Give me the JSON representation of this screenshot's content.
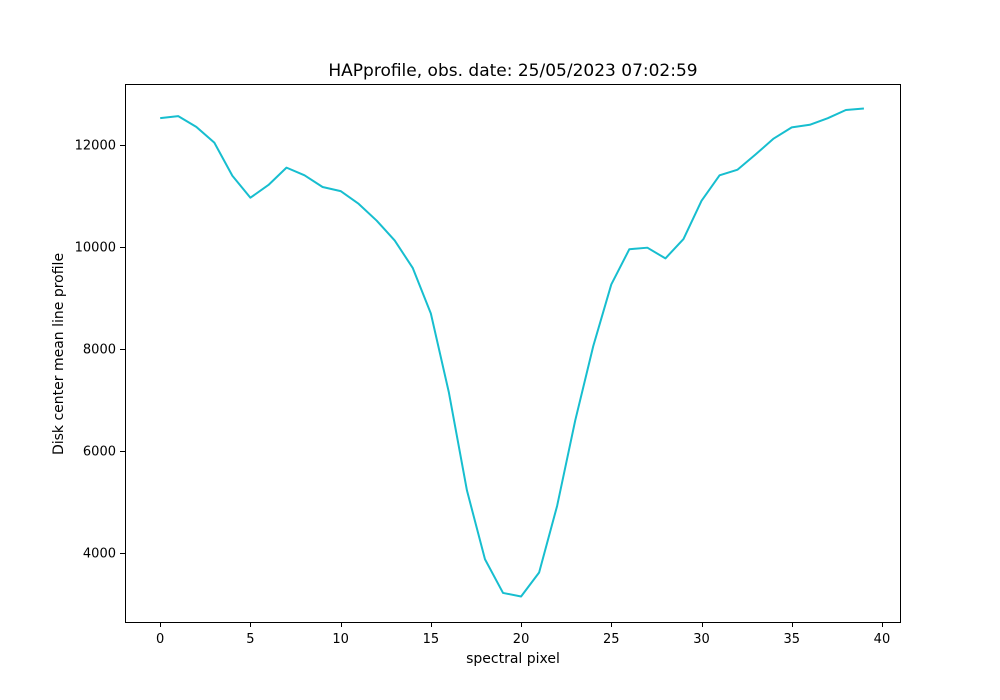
{
  "chart_data": {
    "type": "line",
    "title": "HAPprofile, obs. date: 25/05/2023 07:02:59",
    "xlabel": "spectral pixel",
    "ylabel": "Disk center mean line profile",
    "xlim": [
      -1.95,
      41.0
    ],
    "ylim": [
      2650,
      13200
    ],
    "xticks": [
      0,
      5,
      10,
      15,
      20,
      25,
      30,
      35,
      40
    ],
    "xtick_labels": [
      "0",
      "5",
      "10",
      "15",
      "20",
      "25",
      "30",
      "35",
      "40"
    ],
    "yticks": [
      4000,
      6000,
      8000,
      10000,
      12000
    ],
    "ytick_labels": [
      "4000",
      "6000",
      "8000",
      "10000",
      "12000"
    ],
    "grid": false,
    "legend": "none",
    "series": [
      {
        "color": "#17becf",
        "x": [
          0,
          1,
          2,
          3,
          4,
          5,
          6,
          7,
          8,
          9,
          10,
          11,
          12,
          13,
          14,
          15,
          16,
          17,
          18,
          19,
          20,
          21,
          22,
          23,
          24,
          25,
          26,
          27,
          28,
          29,
          30,
          31,
          32,
          33,
          34,
          35,
          36,
          37,
          38,
          39
        ],
        "y": [
          12530,
          12570,
          12360,
          12050,
          11400,
          10970,
          11220,
          11560,
          11410,
          11180,
          11100,
          10850,
          10520,
          10130,
          9590,
          8700,
          7150,
          5230,
          3880,
          3220,
          3150,
          3620,
          4930,
          6600,
          8060,
          9270,
          9960,
          9990,
          9780,
          10160,
          10910,
          11410,
          11520,
          11820,
          12130,
          12350,
          12400,
          12530,
          12690,
          12720
        ]
      }
    ]
  }
}
